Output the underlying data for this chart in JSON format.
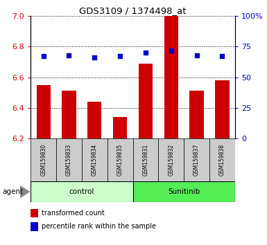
{
  "title": "GDS3109 / 1374498_at",
  "samples": [
    "GSM159830",
    "GSM159833",
    "GSM159834",
    "GSM159835",
    "GSM159831",
    "GSM159832",
    "GSM159837",
    "GSM159838"
  ],
  "bar_values": [
    6.55,
    6.51,
    6.44,
    6.34,
    6.69,
    7.0,
    6.51,
    6.58
  ],
  "percentile_values": [
    67,
    68,
    66,
    67,
    70,
    72,
    68,
    67
  ],
  "ylim_left": [
    6.2,
    7.0
  ],
  "ylim_right": [
    0,
    100
  ],
  "yticks_left": [
    6.2,
    6.4,
    6.6,
    6.8,
    7.0
  ],
  "yticks_right": [
    0,
    25,
    50,
    75,
    100
  ],
  "bar_color": "#cc0000",
  "dot_color": "#0000cc",
  "bar_width": 0.55,
  "groups": [
    {
      "label": "control",
      "indices": [
        0,
        1,
        2,
        3
      ],
      "color": "#ccffcc"
    },
    {
      "label": "Sunitinib",
      "indices": [
        4,
        5,
        6,
        7
      ],
      "color": "#55ee55"
    }
  ],
  "agent_label": "agent",
  "legend_bar_label": "transformed count",
  "legend_dot_label": "percentile rank within the sample",
  "left_tick_color": "#cc0000",
  "right_tick_color": "#0000cc",
  "grid_color": "black",
  "tick_label_area_color": "#cccccc",
  "figure_bg": "#ffffff"
}
